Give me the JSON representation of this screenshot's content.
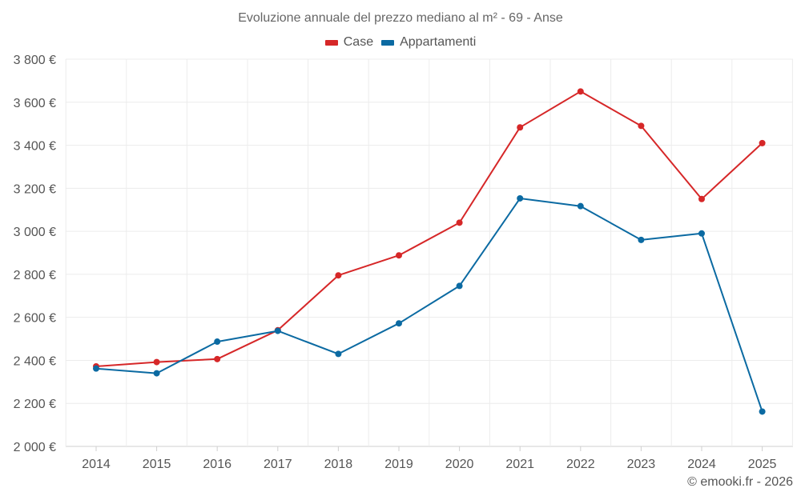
{
  "chart_data": {
    "type": "line",
    "title": "Evoluzione annuale del prezzo mediano al m² - 69 - Anse",
    "x": [
      "2014",
      "2015",
      "2016",
      "2017",
      "2018",
      "2019",
      "2020",
      "2021",
      "2022",
      "2023",
      "2024",
      "2025"
    ],
    "series": [
      {
        "name": "Case",
        "color": "#d62728",
        "values": [
          2372,
          2392,
          2406,
          2540,
          2795,
          2888,
          3040,
          3483,
          3650,
          3490,
          3150,
          3410
        ]
      },
      {
        "name": "Appartamenti",
        "color": "#0b6aa2",
        "values": [
          2362,
          2340,
          2487,
          2537,
          2430,
          2572,
          2746,
          3153,
          3117,
          2960,
          2990,
          2162
        ]
      }
    ],
    "ylim": [
      2000,
      3800
    ],
    "yticks": [
      2000,
      2200,
      2400,
      2600,
      2800,
      3000,
      3200,
      3400,
      3600,
      3800
    ],
    "ytick_labels": [
      "2 000 €",
      "2 200 €",
      "2 400 €",
      "2 600 €",
      "2 800 €",
      "3 000 €",
      "3 200 €",
      "3 400 €",
      "3 600 €",
      "3 800 €"
    ],
    "grid": true,
    "legend_position": "top-center"
  },
  "credit": "© emooki.fr - 2026"
}
